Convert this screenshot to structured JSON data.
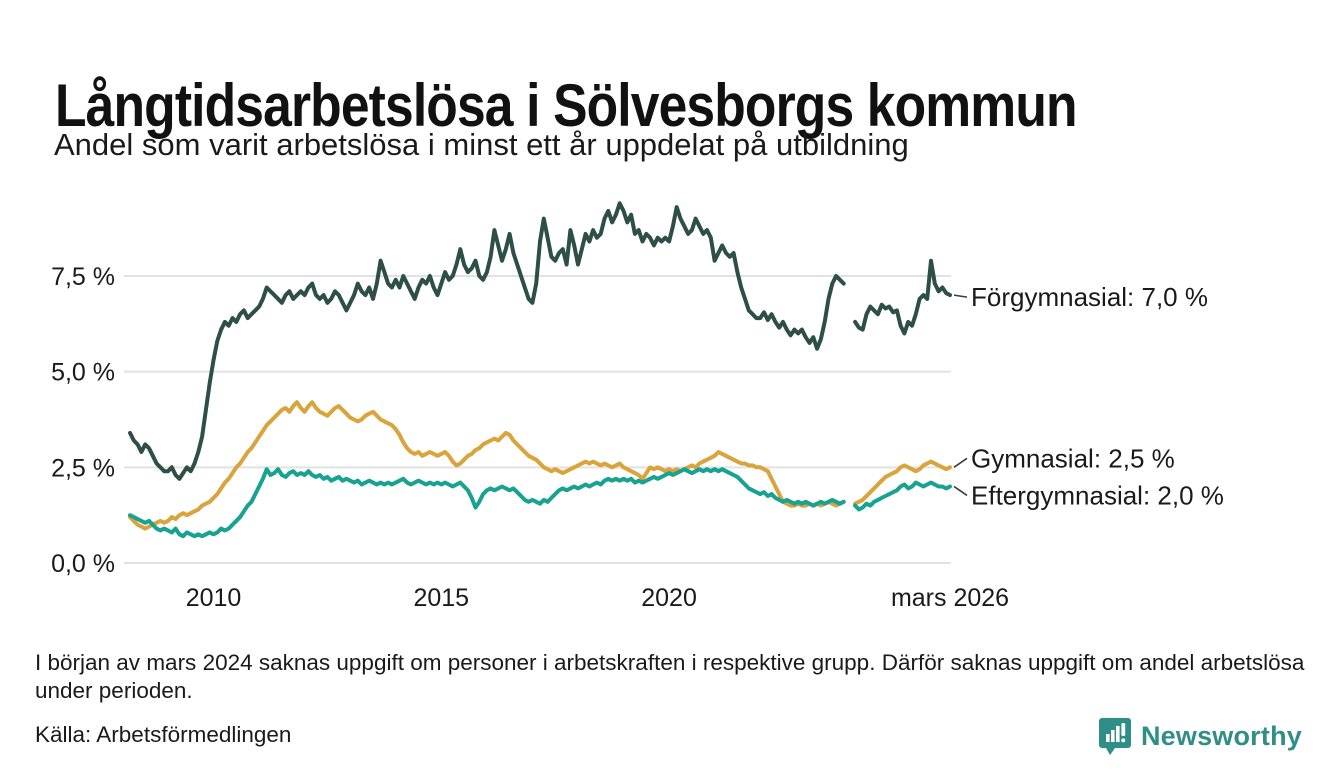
{
  "title": "Långtidsarbetslösa i Sölvesborgs kommun",
  "subtitle": "Andel som varit arbetslösa i minst ett år uppdelat på utbildning",
  "footnote": "I början av mars 2024 saknas uppgift om personer i arbetskraften i respektive grupp. Därför saknas uppgift om andel arbetslösa under perioden.",
  "source": "Källa: Arbetsförmedlingen",
  "branding": {
    "name": "Newsworthy",
    "color": "#2f8e88"
  },
  "colors": {
    "forgymnasial": "#2d4f47",
    "gymnasial": "#d9a43c",
    "eftergymnasial": "#17a292",
    "gridline": "#e2e2e2",
    "text": "#1a1a1a"
  },
  "chart_data": {
    "type": "line",
    "unit": "%",
    "x_start": "2008-03",
    "x_freq": "monthly",
    "x_ticks": [
      {
        "index": 22,
        "label": "2010"
      },
      {
        "index": 82,
        "label": "2015"
      },
      {
        "index": 142,
        "label": "2020"
      },
      {
        "index": 216,
        "label": "mars 2026"
      }
    ],
    "y_ticks": [
      {
        "value": 0,
        "label": "0,0 %"
      },
      {
        "value": 2.5,
        "label": "2,5 %"
      },
      {
        "value": 5,
        "label": "5,0 %"
      },
      {
        "value": 7.5,
        "label": "7,5 %"
      }
    ],
    "ylim": [
      0,
      9.8
    ],
    "grid": true,
    "legend_position": "right-end-labels",
    "missing_data_period": "2023-12 till 2024-02",
    "series": [
      {
        "name": "Förgymnasial",
        "end_label": "Förgymnasial: 7,0 %",
        "end_value": "7,0 %",
        "color": "#2d4f47",
        "values": [
          3.4,
          3.2,
          3.1,
          2.9,
          3.1,
          3.0,
          2.8,
          2.6,
          2.5,
          2.4,
          2.4,
          2.5,
          2.3,
          2.2,
          2.35,
          2.5,
          2.4,
          2.6,
          2.9,
          3.3,
          4.0,
          4.7,
          5.3,
          5.8,
          6.1,
          6.3,
          6.2,
          6.4,
          6.3,
          6.5,
          6.6,
          6.4,
          6.5,
          6.6,
          6.7,
          6.9,
          7.2,
          7.1,
          7.0,
          6.9,
          6.8,
          7.0,
          7.1,
          6.9,
          7.0,
          7.1,
          7.0,
          7.2,
          7.3,
          7.0,
          6.9,
          7.0,
          6.8,
          6.9,
          7.1,
          7.0,
          6.8,
          6.6,
          6.8,
          7.0,
          7.3,
          7.1,
          7.0,
          7.2,
          6.9,
          7.3,
          7.9,
          7.6,
          7.3,
          7.2,
          7.4,
          7.2,
          7.5,
          7.3,
          7.1,
          6.9,
          7.2,
          7.4,
          7.3,
          7.5,
          7.2,
          7.0,
          7.3,
          7.6,
          7.4,
          7.5,
          7.8,
          8.2,
          7.8,
          7.6,
          7.7,
          7.9,
          7.5,
          7.4,
          7.6,
          8.0,
          8.7,
          8.3,
          7.9,
          8.2,
          8.6,
          8.1,
          7.8,
          7.5,
          7.2,
          6.9,
          6.8,
          7.3,
          8.4,
          9.0,
          8.5,
          8.0,
          7.9,
          8.1,
          8.2,
          7.8,
          8.7,
          8.3,
          7.8,
          8.2,
          8.6,
          8.4,
          8.7,
          8.5,
          8.6,
          9.0,
          9.2,
          8.9,
          9.1,
          9.4,
          9.2,
          8.9,
          9.1,
          8.6,
          8.7,
          8.4,
          8.6,
          8.5,
          8.3,
          8.5,
          8.4,
          8.5,
          8.4,
          8.8,
          9.3,
          9.0,
          8.8,
          8.6,
          8.7,
          9.0,
          8.8,
          8.6,
          8.7,
          8.5,
          7.9,
          8.1,
          8.3,
          8.1,
          8.0,
          8.1,
          7.6,
          7.2,
          6.9,
          6.6,
          6.5,
          6.4,
          6.4,
          6.55,
          6.35,
          6.5,
          6.3,
          6.15,
          6.3,
          6.1,
          5.95,
          6.1,
          6.0,
          6.1,
          5.9,
          5.75,
          5.9,
          5.6,
          5.85,
          6.3,
          6.9,
          7.3,
          7.5,
          7.4,
          7.3,
          null,
          null,
          6.3,
          6.15,
          6.1,
          6.5,
          6.7,
          6.6,
          6.5,
          6.75,
          6.65,
          6.7,
          6.55,
          6.6,
          6.2,
          6.0,
          6.3,
          6.2,
          6.5,
          6.9,
          7.0,
          6.9,
          7.9,
          7.3,
          7.1,
          7.2,
          7.05,
          7.0
        ]
      },
      {
        "name": "Gymnasial",
        "end_label": "Gymnasial: 2,5 %",
        "end_value": "2,5 %",
        "color": "#d9a43c",
        "values": [
          1.2,
          1.1,
          1.0,
          0.95,
          0.9,
          0.95,
          1.0,
          1.05,
          1.1,
          1.05,
          1.1,
          1.2,
          1.15,
          1.25,
          1.3,
          1.25,
          1.3,
          1.35,
          1.4,
          1.5,
          1.55,
          1.6,
          1.7,
          1.8,
          1.95,
          2.1,
          2.2,
          2.35,
          2.5,
          2.6,
          2.75,
          2.9,
          3.0,
          3.15,
          3.3,
          3.45,
          3.6,
          3.7,
          3.8,
          3.9,
          4.0,
          4.05,
          3.95,
          4.1,
          4.2,
          4.05,
          3.95,
          4.1,
          4.2,
          4.05,
          3.95,
          3.9,
          3.85,
          3.95,
          4.05,
          4.1,
          4.0,
          3.9,
          3.8,
          3.75,
          3.7,
          3.75,
          3.85,
          3.9,
          3.95,
          3.85,
          3.75,
          3.7,
          3.65,
          3.6,
          3.5,
          3.35,
          3.15,
          3.0,
          2.9,
          2.85,
          2.9,
          2.8,
          2.85,
          2.9,
          2.85,
          2.8,
          2.85,
          2.9,
          2.8,
          2.65,
          2.55,
          2.6,
          2.7,
          2.8,
          2.85,
          2.95,
          3.0,
          3.1,
          3.15,
          3.2,
          3.25,
          3.2,
          3.3,
          3.4,
          3.35,
          3.2,
          3.1,
          3.0,
          2.9,
          2.8,
          2.75,
          2.7,
          2.6,
          2.5,
          2.45,
          2.4,
          2.45,
          2.4,
          2.35,
          2.4,
          2.45,
          2.5,
          2.55,
          2.6,
          2.65,
          2.6,
          2.65,
          2.6,
          2.55,
          2.6,
          2.55,
          2.5,
          2.55,
          2.6,
          2.5,
          2.45,
          2.4,
          2.35,
          2.3,
          2.2,
          2.35,
          2.5,
          2.45,
          2.5,
          2.45,
          2.4,
          2.45,
          2.4,
          2.45,
          2.4,
          2.45,
          2.5,
          2.55,
          2.5,
          2.6,
          2.65,
          2.7,
          2.75,
          2.8,
          2.9,
          2.85,
          2.8,
          2.75,
          2.7,
          2.65,
          2.6,
          2.6,
          2.55,
          2.55,
          2.5,
          2.5,
          2.45,
          2.4,
          2.2,
          2.0,
          1.8,
          1.6,
          1.55,
          1.5,
          1.5,
          1.55,
          1.5,
          1.5,
          1.55,
          1.5,
          1.55,
          1.5,
          1.55,
          1.6,
          1.55,
          1.5,
          1.55,
          1.6,
          null,
          null,
          1.55,
          1.6,
          1.65,
          1.75,
          1.85,
          1.95,
          2.05,
          2.15,
          2.25,
          2.3,
          2.35,
          2.4,
          2.5,
          2.55,
          2.5,
          2.45,
          2.4,
          2.45,
          2.55,
          2.6,
          2.65,
          2.6,
          2.55,
          2.5,
          2.45,
          2.5
        ]
      },
      {
        "name": "Eftergymnasial",
        "end_label": "Eftergymnasial: 2,0 %",
        "end_value": "2,0 %",
        "color": "#17a292",
        "values": [
          1.25,
          1.2,
          1.15,
          1.1,
          1.05,
          1.1,
          1.0,
          0.9,
          0.85,
          0.9,
          0.85,
          0.8,
          0.9,
          0.75,
          0.7,
          0.8,
          0.75,
          0.7,
          0.75,
          0.7,
          0.75,
          0.8,
          0.75,
          0.8,
          0.9,
          0.85,
          0.9,
          1.0,
          1.1,
          1.2,
          1.35,
          1.5,
          1.6,
          1.8,
          2.0,
          2.2,
          2.45,
          2.3,
          2.35,
          2.45,
          2.3,
          2.25,
          2.35,
          2.4,
          2.3,
          2.35,
          2.3,
          2.4,
          2.3,
          2.25,
          2.3,
          2.2,
          2.25,
          2.15,
          2.2,
          2.25,
          2.15,
          2.2,
          2.15,
          2.1,
          2.15,
          2.05,
          2.1,
          2.15,
          2.1,
          2.05,
          2.1,
          2.05,
          2.1,
          2.05,
          2.1,
          2.15,
          2.2,
          2.1,
          2.05,
          2.1,
          2.15,
          2.1,
          2.05,
          2.1,
          2.05,
          2.1,
          2.05,
          2.1,
          2.05,
          2.0,
          2.05,
          2.1,
          2.0,
          1.9,
          1.7,
          1.45,
          1.6,
          1.8,
          1.9,
          1.95,
          1.9,
          1.95,
          2.0,
          1.95,
          1.9,
          1.95,
          1.85,
          1.75,
          1.65,
          1.6,
          1.65,
          1.6,
          1.55,
          1.65,
          1.6,
          1.7,
          1.8,
          1.9,
          1.95,
          1.9,
          1.95,
          2.0,
          1.95,
          2.0,
          2.05,
          2.0,
          2.05,
          2.1,
          2.05,
          2.15,
          2.2,
          2.15,
          2.2,
          2.15,
          2.2,
          2.15,
          2.2,
          2.1,
          2.15,
          2.1,
          2.15,
          2.2,
          2.25,
          2.2,
          2.25,
          2.3,
          2.35,
          2.3,
          2.35,
          2.4,
          2.45,
          2.4,
          2.35,
          2.4,
          2.45,
          2.4,
          2.45,
          2.4,
          2.45,
          2.4,
          2.45,
          2.4,
          2.35,
          2.3,
          2.25,
          2.15,
          2.05,
          1.95,
          1.9,
          1.85,
          1.8,
          1.85,
          1.75,
          1.8,
          1.7,
          1.65,
          1.6,
          1.65,
          1.6,
          1.55,
          1.6,
          1.55,
          1.6,
          1.55,
          1.5,
          1.55,
          1.6,
          1.55,
          1.6,
          1.65,
          1.6,
          1.55,
          1.6,
          null,
          null,
          1.5,
          1.4,
          1.45,
          1.55,
          1.5,
          1.6,
          1.65,
          1.7,
          1.75,
          1.8,
          1.85,
          1.9,
          2.0,
          2.05,
          1.95,
          2.0,
          2.1,
          2.05,
          2.0,
          2.05,
          2.1,
          2.05,
          2.0,
          2.0,
          1.95,
          2.0
        ]
      }
    ]
  }
}
